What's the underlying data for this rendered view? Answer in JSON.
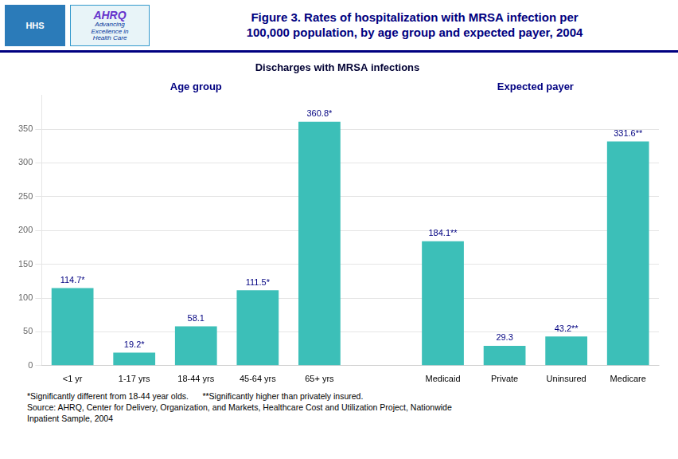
{
  "chart_data": {
    "type": "bar",
    "title": [
      "Figure 3. Rates of hospitalization with MRSA infection per",
      "100,000 population, by age group and expected payer, 2004"
    ],
    "subtitle": "Discharges with MRSA infections",
    "header_texts": [
      "HHS",
      "AHRQ",
      "Advancing\nExcellence in\nHealth Care"
    ],
    "categories": [
      "<1 yr",
      "1-17 yrs",
      "18-44 yrs",
      "45-64 yrs",
      "65+ yrs",
      null,
      "Medicaid",
      "Private",
      "Uninsured",
      "Medicare"
    ],
    "values": [
      114.7,
      19.2,
      58.1,
      111.5,
      360.8,
      null,
      184.1,
      29.3,
      43.2,
      331.6
    ],
    "value_labels": [
      "114.7*",
      "19.2*",
      "58.1",
      "111.5*",
      "360.8*",
      null,
      "184.1**",
      "29.3",
      "43.2**",
      "331.6**"
    ],
    "data_labels": true,
    "color": "#3CBFB8",
    "annotations": [
      "Age group",
      "Expected payer"
    ],
    "footnotes": [
      "*Significantly different from 18-44 year olds.      **Significantly higher than privately insured.",
      "Source: AHRQ, Center for Delivery, Organization, and Markets, Healthcare Cost and Utilization Project, Nationwide",
      "Inpatient Sample, 2004"
    ],
    "ylim": [
      0,
      400
    ],
    "yticks": [
      0,
      50,
      100,
      150,
      200,
      250,
      300,
      350
    ],
    "grid": true
  }
}
